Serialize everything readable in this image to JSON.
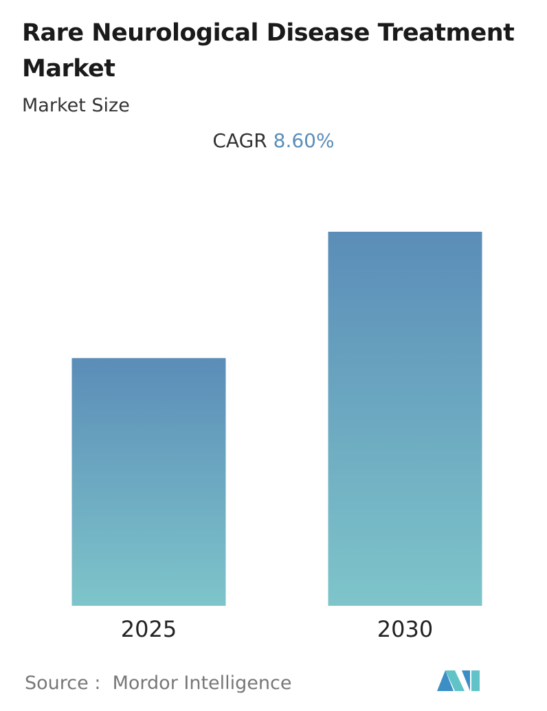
{
  "chart_data": {
    "type": "bar",
    "title": "Rare Neurological Disease Treatment Market",
    "subtitle": "Market Size",
    "cagr_label": "CAGR",
    "cagr_value": "8.60%",
    "categories": [
      "2025",
      "2030"
    ],
    "values": [
      1,
      1.51
    ],
    "ylim": [
      0,
      1.51
    ],
    "color_top": "#5b8db8",
    "color_bottom": "#7ec5ca",
    "source_label": "Source :",
    "source": "Mordor Intelligence"
  }
}
